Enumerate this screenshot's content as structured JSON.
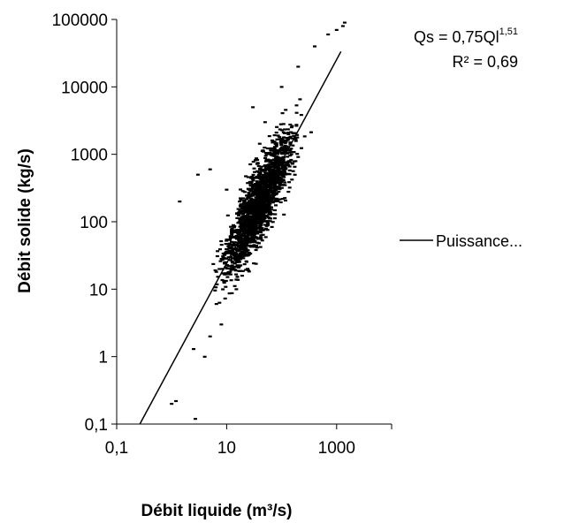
{
  "chart_data": {
    "type": "scatter",
    "xlabel": "Débit liquide (m³/s)",
    "ylabel": "Débit solide (kg/s)",
    "x_scale": "log",
    "y_scale": "log",
    "xlim": [
      0.1,
      10000
    ],
    "ylim": [
      0.1,
      100000
    ],
    "x_tick_labels": [
      "0,1",
      "10",
      "1000"
    ],
    "y_tick_labels": [
      "0,1",
      "1",
      "10",
      "100",
      "1000",
      "10000",
      "100000"
    ],
    "grid": false,
    "legend": {
      "position": "right",
      "entries": [
        "Puissance..."
      ]
    },
    "annotation": {
      "equation_prefix": "Qs = 0,75Ql",
      "equation_exponent": "1,51",
      "r2": "R² = 0,69"
    },
    "trendline": {
      "type": "power",
      "coefficient": 0.75,
      "exponent": 1.51
    },
    "series": [
      {
        "points_summary": "approx. 2000 measured points; log10(Qs) ≈ log10(0.75) + 1.51·log10(Ql) with scatter ±0.8 decade",
        "sample_points": [
          [
            2.5,
            1.3
          ],
          [
            1.4,
            200
          ],
          [
            1.0,
            0.2
          ],
          [
            1.2,
            0.22
          ],
          [
            2.7,
            0.12
          ],
          [
            3.0,
            500
          ],
          [
            5.0,
            600
          ],
          [
            8.0,
            3.0
          ],
          [
            10,
            300
          ],
          [
            20,
            40
          ],
          [
            30,
            5000
          ],
          [
            50,
            3000
          ],
          [
            100,
            10000
          ],
          [
            200,
            20000
          ],
          [
            400,
            40000
          ],
          [
            700,
            60000
          ],
          [
            1000,
            70000
          ],
          [
            1300,
            80000
          ],
          [
            1400,
            90000
          ],
          [
            60,
            200
          ],
          [
            15,
            10
          ],
          [
            5,
            2
          ],
          [
            4,
            1
          ]
        ]
      }
    ]
  }
}
